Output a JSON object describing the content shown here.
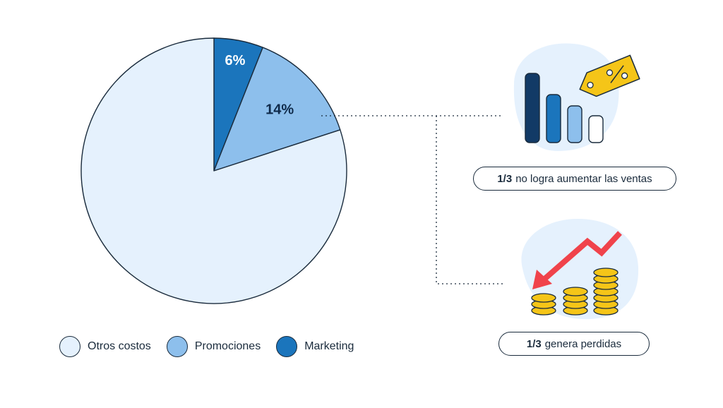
{
  "chart_data": {
    "type": "pie",
    "slices": [
      {
        "label": "Marketing",
        "value": 6,
        "display": "6%",
        "color": "#1b75bc"
      },
      {
        "label": "Promociones",
        "value": 14,
        "display": "14%",
        "color": "#8dbfec"
      },
      {
        "label": "Otros costos",
        "value": 80,
        "display": "",
        "color": "#e5f1fd"
      }
    ],
    "legend": [
      "Otros costos",
      "Promociones",
      "Marketing"
    ],
    "legend_position": "bottom-left"
  },
  "callouts": [
    {
      "bold": "1/3",
      "text": "no logra aumentar las ventas",
      "icon": "bar-chart-price-tag-icon"
    },
    {
      "bold": "1/3",
      "text": "genera perdidas",
      "icon": "falling-arrow-coins-icon"
    }
  ],
  "colors": {
    "outline": "#1a2b3c",
    "dark_blue": "#123a66",
    "mid_blue": "#1b75bc",
    "light_blue": "#8dbfec",
    "pale_blue": "#e5f1fd",
    "gold": "#f5c518",
    "red": "#f0434b"
  }
}
